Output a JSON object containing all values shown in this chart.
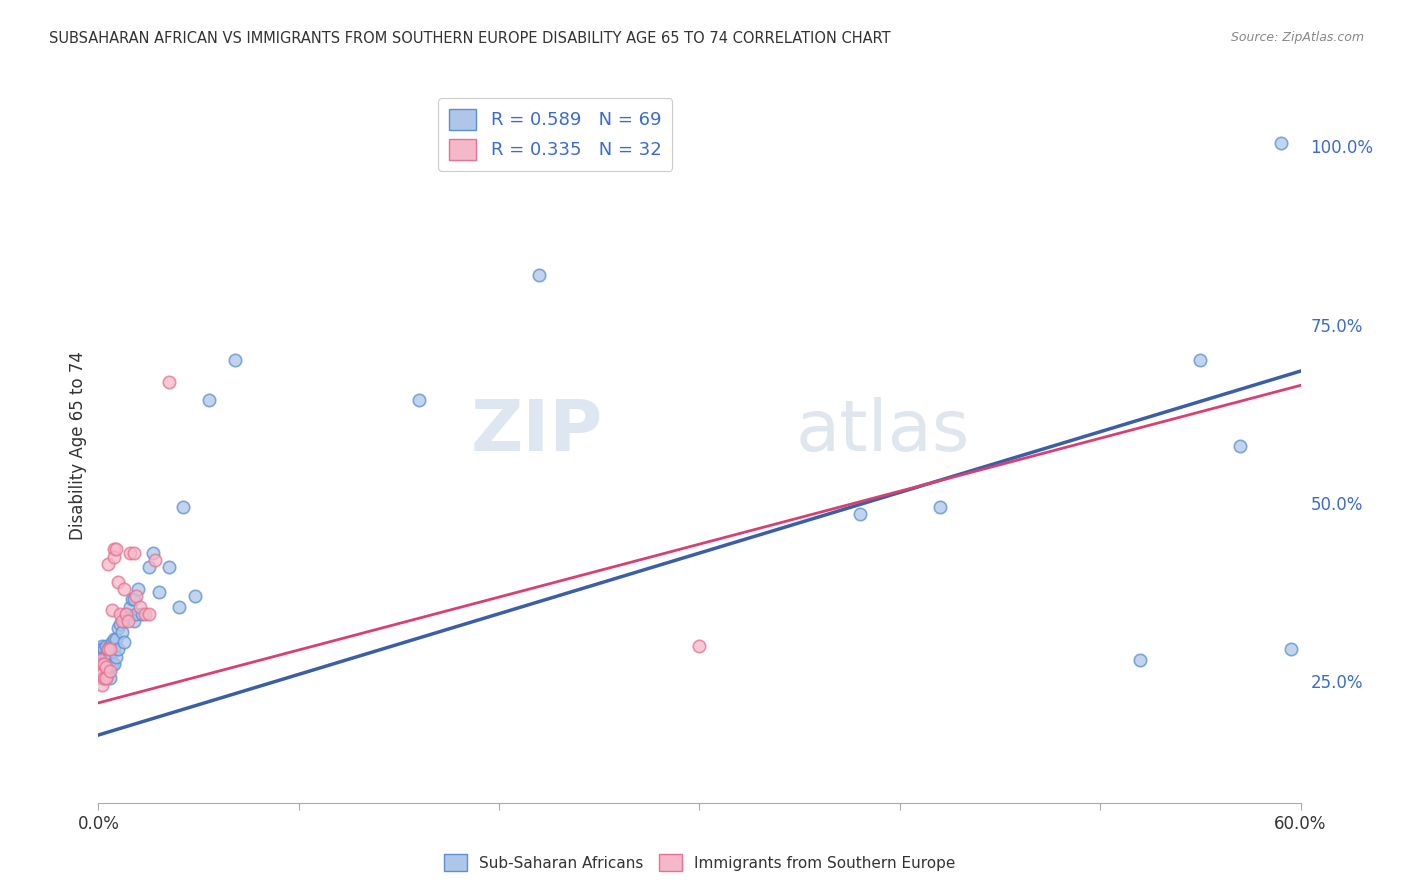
{
  "title": "SUBSAHARAN AFRICAN VS IMMIGRANTS FROM SOUTHERN EUROPE DISABILITY AGE 65 TO 74 CORRELATION CHART",
  "source": "Source: ZipAtlas.com",
  "ylabel": "Disability Age 65 to 74",
  "legend1_label": "R = 0.589   N = 69",
  "legend2_label": "R = 0.335   N = 32",
  "legend_label1_bottom": "Sub-Saharan Africans",
  "legend_label2_bottom": "Immigrants from Southern Europe",
  "blue_color": "#aec6e8",
  "blue_edge_color": "#5b8fd4",
  "blue_line_color": "#3a5fa8",
  "pink_color": "#f5b8c8",
  "pink_edge_color": "#e87090",
  "pink_line_color": "#d94070",
  "xlim_min": 0.0,
  "xlim_max": 0.6,
  "ylim_min": 0.08,
  "ylim_max": 1.08,
  "ytick_values": [
    0.25,
    0.5,
    0.75,
    1.0
  ],
  "ytick_labels": [
    "25.0%",
    "50.0%",
    "75.0%",
    "100.0%"
  ],
  "xtick_values": [
    0.0,
    0.1,
    0.2,
    0.3,
    0.4,
    0.5,
    0.6
  ],
  "xtick_labels": [
    "0.0%",
    "",
    "",
    "",
    "",
    "",
    "60.0%"
  ],
  "blue_line_x0": 0.0,
  "blue_line_y0": 0.175,
  "blue_line_x1": 0.6,
  "blue_line_y1": 0.685,
  "pink_line_x0": 0.0,
  "pink_line_y0": 0.22,
  "pink_line_x1": 0.6,
  "pink_line_y1": 0.665,
  "blue_scatter_x": [
    0.001,
    0.001,
    0.001,
    0.001,
    0.001,
    0.002,
    0.002,
    0.002,
    0.002,
    0.002,
    0.002,
    0.002,
    0.002,
    0.003,
    0.003,
    0.003,
    0.003,
    0.003,
    0.004,
    0.004,
    0.004,
    0.004,
    0.005,
    0.005,
    0.005,
    0.006,
    0.006,
    0.006,
    0.006,
    0.007,
    0.007,
    0.008,
    0.008,
    0.008,
    0.009,
    0.009,
    0.01,
    0.01,
    0.011,
    0.012,
    0.013,
    0.013,
    0.014,
    0.015,
    0.016,
    0.017,
    0.018,
    0.018,
    0.019,
    0.02,
    0.022,
    0.025,
    0.027,
    0.03,
    0.035,
    0.04,
    0.042,
    0.048,
    0.055,
    0.068,
    0.16,
    0.22,
    0.38,
    0.42,
    0.52,
    0.55,
    0.57,
    0.59,
    0.595
  ],
  "blue_scatter_y": [
    0.295,
    0.29,
    0.285,
    0.28,
    0.275,
    0.3,
    0.295,
    0.285,
    0.275,
    0.27,
    0.265,
    0.26,
    0.255,
    0.295,
    0.285,
    0.275,
    0.265,
    0.255,
    0.3,
    0.285,
    0.27,
    0.255,
    0.295,
    0.28,
    0.26,
    0.3,
    0.285,
    0.27,
    0.255,
    0.305,
    0.275,
    0.31,
    0.295,
    0.275,
    0.31,
    0.285,
    0.325,
    0.295,
    0.33,
    0.32,
    0.335,
    0.305,
    0.345,
    0.34,
    0.355,
    0.365,
    0.365,
    0.335,
    0.345,
    0.38,
    0.345,
    0.41,
    0.43,
    0.375,
    0.41,
    0.355,
    0.495,
    0.37,
    0.645,
    0.7,
    0.645,
    0.82,
    0.485,
    0.495,
    0.28,
    0.7,
    0.58,
    1.005,
    0.295
  ],
  "pink_scatter_x": [
    0.001,
    0.001,
    0.002,
    0.002,
    0.002,
    0.003,
    0.003,
    0.004,
    0.004,
    0.005,
    0.005,
    0.006,
    0.006,
    0.007,
    0.008,
    0.008,
    0.009,
    0.01,
    0.011,
    0.012,
    0.013,
    0.014,
    0.015,
    0.016,
    0.018,
    0.019,
    0.021,
    0.023,
    0.025,
    0.028,
    0.035,
    0.3
  ],
  "pink_scatter_y": [
    0.28,
    0.265,
    0.275,
    0.26,
    0.245,
    0.275,
    0.255,
    0.27,
    0.255,
    0.415,
    0.295,
    0.295,
    0.265,
    0.35,
    0.435,
    0.425,
    0.435,
    0.39,
    0.345,
    0.335,
    0.38,
    0.345,
    0.335,
    0.43,
    0.43,
    0.37,
    0.355,
    0.345,
    0.345,
    0.42,
    0.67,
    0.3
  ],
  "watermark_zip": "ZIP",
  "watermark_atlas": "atlas",
  "background_color": "#ffffff",
  "grid_color": "#cccccc",
  "marker_size": 80,
  "marker_linewidth": 1.2
}
